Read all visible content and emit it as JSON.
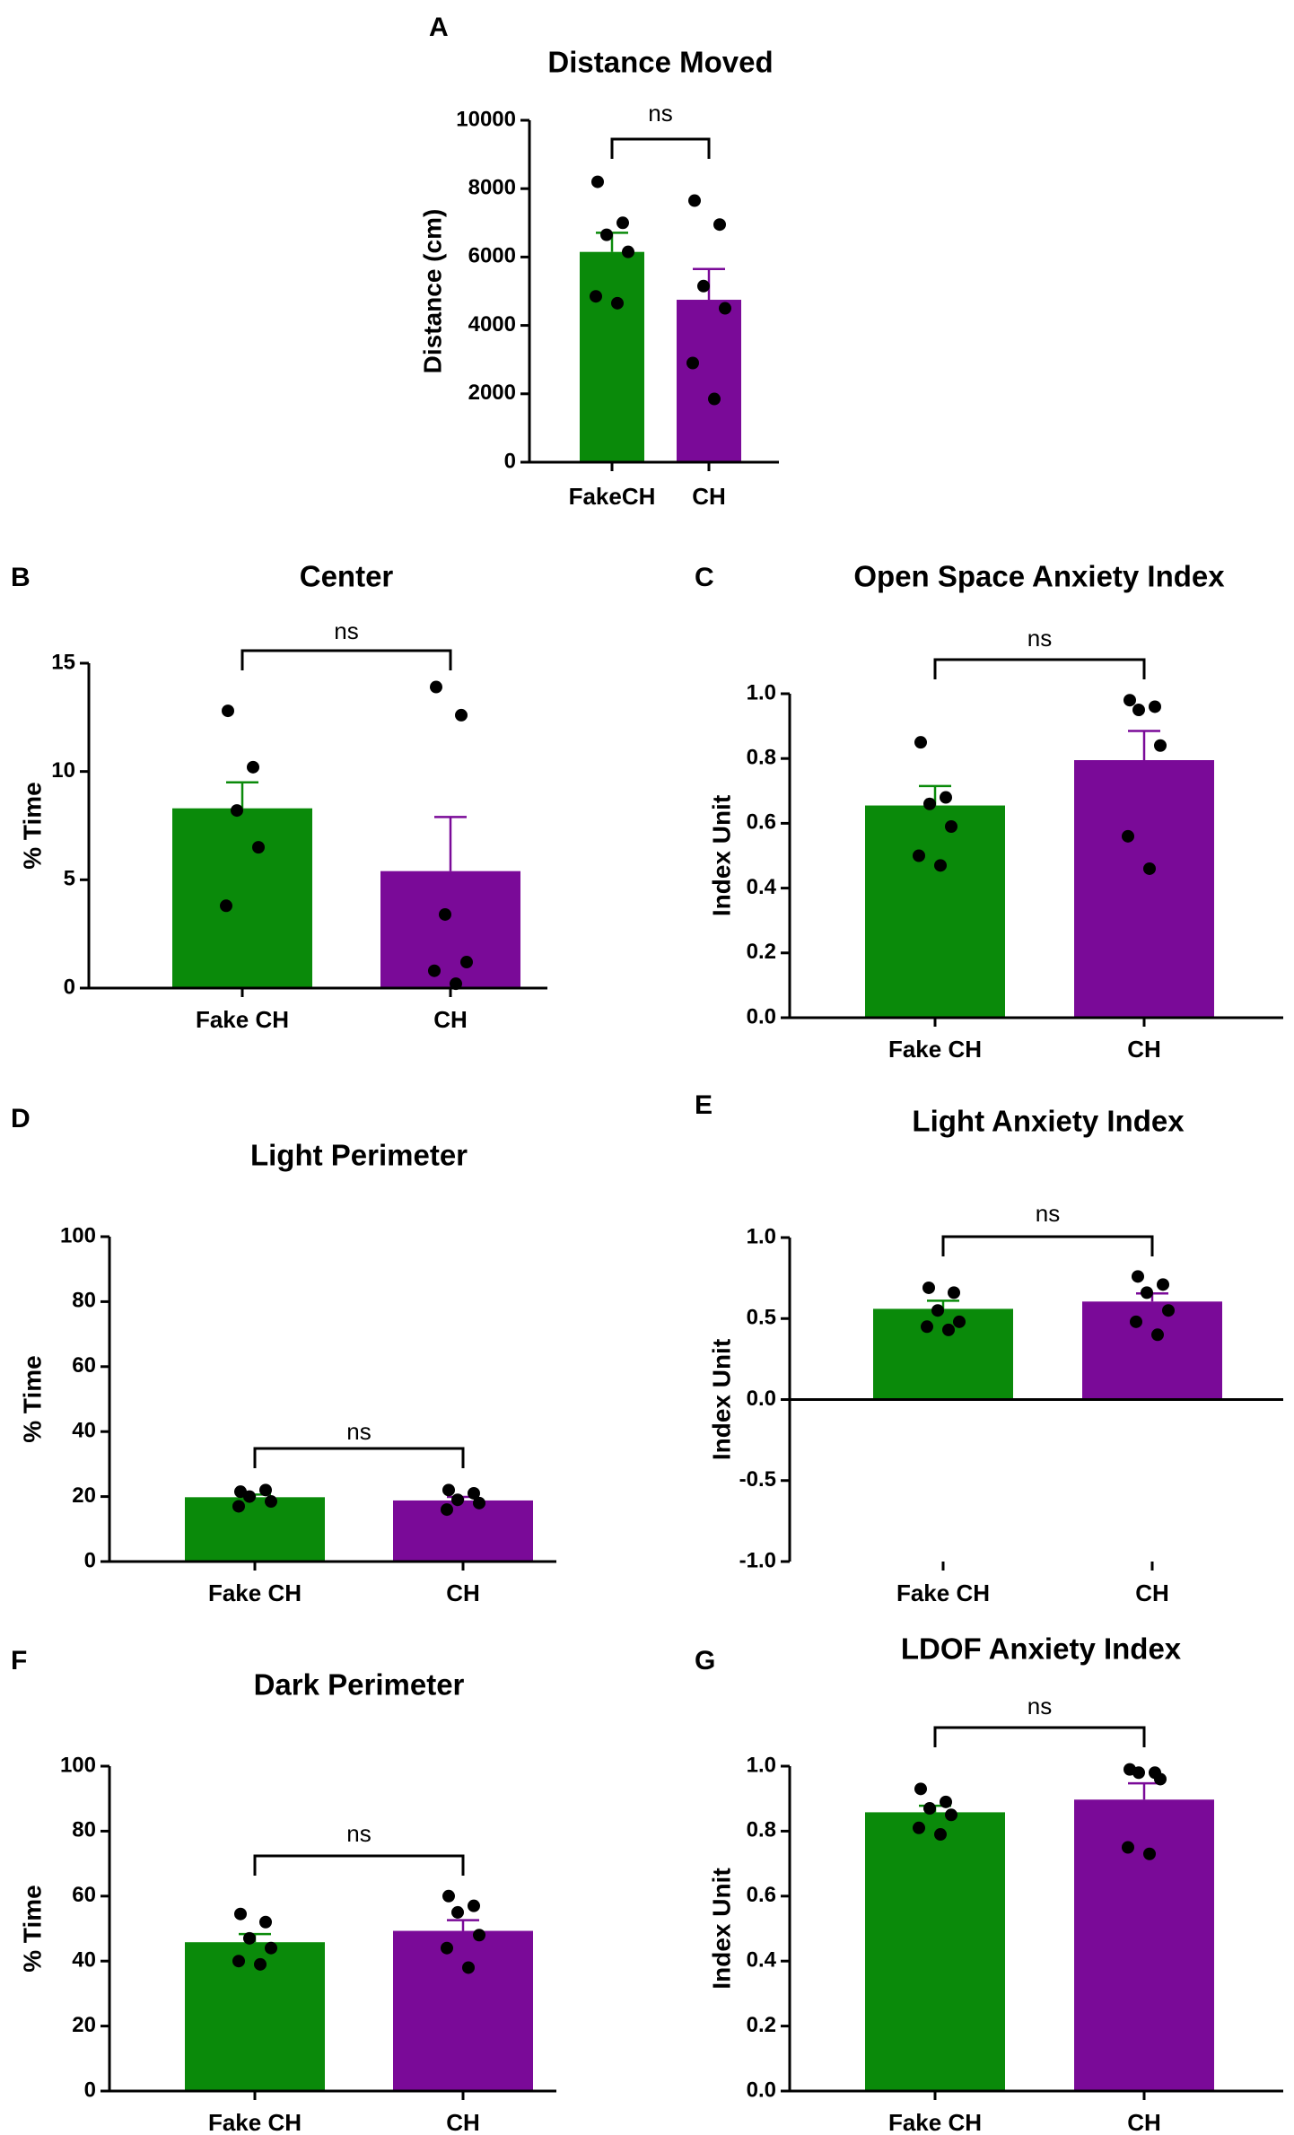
{
  "colors": {
    "fake_ch": "#0a8a0a",
    "ch": "#7a0a98",
    "axis": "#000000",
    "dot": "#000000"
  },
  "chart_data": [
    {
      "label": "A",
      "type": "bar",
      "title": "Distance Moved",
      "xlabel": "",
      "ylabel": "Distance (cm)",
      "categories": [
        "FakeCH",
        "CH"
      ],
      "ylim": [
        0,
        10000
      ],
      "yticks": [
        0,
        2000,
        4000,
        6000,
        8000,
        10000
      ],
      "ytick_labels": [
        "0",
        "2000",
        "4000",
        "6000",
        "8000",
        "10000"
      ],
      "bars": [
        {
          "name": "FakeCH",
          "value": 6150,
          "sem": 560,
          "points": [
            8200,
            7000,
            6650,
            6150,
            4850,
            4650
          ]
        },
        {
          "name": "CH",
          "value": 4750,
          "sem": 900,
          "points": [
            7650,
            6950,
            5150,
            4500,
            2900,
            1850
          ]
        }
      ],
      "significance": "ns"
    },
    {
      "label": "B",
      "type": "bar",
      "title": "Center",
      "xlabel": "",
      "ylabel": "% Time",
      "categories": [
        "Fake CH",
        "CH"
      ],
      "ylim": [
        0,
        15
      ],
      "yticks": [
        0,
        5,
        10,
        15
      ],
      "ytick_labels": [
        "0",
        "5",
        "10",
        "15"
      ],
      "bars": [
        {
          "name": "Fake CH",
          "value": 8.3,
          "sem": 1.2,
          "points": [
            12.8,
            10.2,
            8.2,
            6.5,
            3.8
          ]
        },
        {
          "name": "CH",
          "value": 5.4,
          "sem": 2.5,
          "points": [
            13.9,
            12.6,
            3.4,
            1.2,
            0.8,
            0.2
          ]
        }
      ],
      "significance": "ns"
    },
    {
      "label": "C",
      "type": "bar",
      "title": "Open  Space Anxiety Index",
      "xlabel": "",
      "ylabel": "Index Unit",
      "categories": [
        "Fake CH",
        "CH"
      ],
      "ylim": [
        0,
        1.0
      ],
      "yticks": [
        0,
        0.2,
        0.4,
        0.6,
        0.8,
        1.0
      ],
      "ytick_labels": [
        "0.0",
        "0.2",
        "0.4",
        "0.6",
        "0.8",
        "1.0"
      ],
      "bars": [
        {
          "name": "Fake CH",
          "value": 0.655,
          "sem": 0.06,
          "points": [
            0.85,
            0.68,
            0.66,
            0.59,
            0.5,
            0.47
          ]
        },
        {
          "name": "CH",
          "value": 0.795,
          "sem": 0.09,
          "points": [
            0.98,
            0.96,
            0.95,
            0.84,
            0.56,
            0.46
          ]
        }
      ],
      "significance": "ns"
    },
    {
      "label": "D",
      "type": "bar",
      "title": "Light  Perimeter",
      "xlabel": "",
      "ylabel": "% Time",
      "categories": [
        "Fake CH",
        "CH"
      ],
      "ylim": [
        0,
        100
      ],
      "yticks": [
        0,
        20,
        40,
        60,
        80,
        100
      ],
      "ytick_labels": [
        "0",
        "20",
        "40",
        "60",
        "80",
        "100"
      ],
      "bars": [
        {
          "name": "Fake CH",
          "value": 19.8,
          "sem": 0.8,
          "points": [
            21.5,
            22,
            20,
            18.5,
            17
          ]
        },
        {
          "name": "CH",
          "value": 18.8,
          "sem": 1.1,
          "points": [
            22,
            21,
            19,
            18,
            16
          ]
        }
      ],
      "significance": "ns"
    },
    {
      "label": "E",
      "type": "bar",
      "title": "Light Anxiety Index",
      "xlabel": "",
      "ylabel": "Index Unit",
      "categories": [
        "Fake CH",
        "CH"
      ],
      "ylim": [
        -1.0,
        1.0
      ],
      "yticks": [
        -1.0,
        -0.5,
        0,
        0.5,
        1.0
      ],
      "ytick_labels": [
        "-1.0",
        "-0.5",
        "0.0",
        "0.5",
        "1.0"
      ],
      "bars": [
        {
          "name": "Fake CH",
          "value": 0.56,
          "sem": 0.05,
          "points": [
            0.69,
            0.66,
            0.55,
            0.48,
            0.45,
            0.43
          ]
        },
        {
          "name": "CH",
          "value": 0.605,
          "sem": 0.05,
          "points": [
            0.76,
            0.71,
            0.66,
            0.55,
            0.48,
            0.4
          ]
        }
      ],
      "significance": "ns"
    },
    {
      "label": "F",
      "type": "bar",
      "title": "Dark  Perimeter",
      "xlabel": "",
      "ylabel": "% Time",
      "categories": [
        "Fake CH",
        "CH"
      ],
      "ylim": [
        0,
        100
      ],
      "yticks": [
        0,
        20,
        40,
        60,
        80,
        100
      ],
      "ytick_labels": [
        "0",
        "20",
        "40",
        "60",
        "80",
        "100"
      ],
      "bars": [
        {
          "name": "Fake CH",
          "value": 45.8,
          "sem": 2.5,
          "points": [
            54.5,
            52,
            47,
            44,
            40,
            39
          ]
        },
        {
          "name": "CH",
          "value": 49.3,
          "sem": 3.3,
          "points": [
            60,
            57,
            55,
            48,
            44,
            38
          ]
        }
      ],
      "significance": "ns"
    },
    {
      "label": "G",
      "type": "bar",
      "title": "LDOF Anxiety Index",
      "xlabel": "",
      "ylabel": "Index Unit",
      "categories": [
        "Fake CH",
        "CH"
      ],
      "ylim": [
        0,
        1.0
      ],
      "yticks": [
        0,
        0.2,
        0.4,
        0.6,
        0.8,
        1.0
      ],
      "ytick_labels": [
        "0.0",
        "0.2",
        "0.4",
        "0.6",
        "0.8",
        "1.0"
      ],
      "bars": [
        {
          "name": "Fake CH",
          "value": 0.858,
          "sem": 0.02,
          "points": [
            0.93,
            0.89,
            0.87,
            0.85,
            0.81,
            0.79
          ]
        },
        {
          "name": "CH",
          "value": 0.897,
          "sem": 0.05,
          "points": [
            0.99,
            0.98,
            0.98,
            0.96,
            0.75,
            0.73
          ]
        }
      ],
      "significance": "ns"
    }
  ]
}
